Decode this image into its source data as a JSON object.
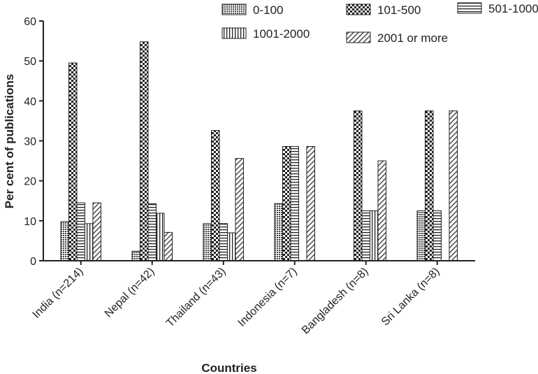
{
  "chart_data": {
    "type": "bar",
    "title": "",
    "xlabel": "Countries",
    "ylabel": "Per cent of publications",
    "ylim": [
      0,
      60
    ],
    "yticks": [
      0,
      10,
      20,
      30,
      40,
      50,
      60
    ],
    "grid": false,
    "legend_position": "top-right",
    "categories": [
      "India (n=214)",
      "Nepal (n=42)",
      "Thailand (n=43)",
      "Indonesia (n=7)",
      "Bangladesh (n=8)",
      "Sri Lanka (n=8)"
    ],
    "series": [
      {
        "name": "0-100",
        "pattern": "dots",
        "values": [
          9.8,
          2.4,
          9.3,
          14.3,
          0,
          12.5
        ]
      },
      {
        "name": "101-500",
        "pattern": "checker",
        "values": [
          49.5,
          54.8,
          32.6,
          28.6,
          37.5,
          37.5
        ]
      },
      {
        "name": "501-1000",
        "pattern": "horizontal",
        "values": [
          14.5,
          14.3,
          9.3,
          28.6,
          12.5,
          12.5
        ]
      },
      {
        "name": "1001-2000",
        "pattern": "vertical",
        "values": [
          9.3,
          11.9,
          7.0,
          0,
          12.5,
          0
        ]
      },
      {
        "name": "2001 or more",
        "pattern": "diagonal",
        "values": [
          14.5,
          7.1,
          25.6,
          28.6,
          25.0,
          37.5
        ]
      }
    ]
  }
}
